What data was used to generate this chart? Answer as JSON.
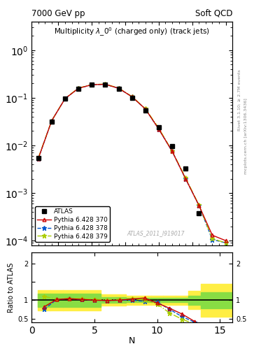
{
  "title_top_left": "7000 GeV pp",
  "title_top_right": "Soft QCD",
  "title_main": "Multiplicity $\\lambda\\_0^0$ (charged only) (track jets)",
  "right_label_top": "Rivet 3.1.10; ≥ 2.7M events",
  "right_label_bottom": "mcplots.cern.ch [arXiv:1306.3436]",
  "watermark": "ATLAS_2011_I919017",
  "atlas_x": [
    1,
    2,
    3,
    4,
    5,
    6,
    7,
    8,
    9,
    10,
    11,
    12,
    13
  ],
  "atlas_y": [
    0.0055,
    0.032,
    0.095,
    0.155,
    0.19,
    0.19,
    0.155,
    0.1,
    0.055,
    0.024,
    0.0095,
    0.0033,
    0.00038
  ],
  "py370_x": [
    1,
    2,
    3,
    4,
    5,
    6,
    7,
    8,
    9,
    10,
    11,
    12,
    13,
    14,
    15
  ],
  "py370_y": [
    0.0053,
    0.033,
    0.096,
    0.158,
    0.188,
    0.192,
    0.158,
    0.105,
    0.058,
    0.022,
    0.0075,
    0.002,
    0.00055,
    0.00013,
    0.0001
  ],
  "py378_x": [
    1,
    2,
    3,
    4,
    5,
    6,
    7,
    8,
    9,
    10,
    11,
    12,
    13,
    14,
    15
  ],
  "py378_y": [
    0.0053,
    0.033,
    0.096,
    0.158,
    0.188,
    0.192,
    0.158,
    0.105,
    0.058,
    0.022,
    0.0075,
    0.002,
    0.00055,
    0.000105,
    9e-05
  ],
  "py379_x": [
    1,
    2,
    3,
    4,
    5,
    6,
    7,
    8,
    9,
    10,
    11,
    12,
    13,
    14,
    15
  ],
  "py379_y": [
    0.0055,
    0.033,
    0.097,
    0.16,
    0.19,
    0.194,
    0.16,
    0.106,
    0.059,
    0.023,
    0.0076,
    0.0021,
    0.00056,
    0.00011,
    9e-05
  ],
  "ratio370_x": [
    1,
    2,
    3,
    4,
    5,
    6,
    7,
    8,
    9,
    10,
    11,
    12,
    13
  ],
  "ratio370_y": [
    0.82,
    1.02,
    1.04,
    1.02,
    1.0,
    0.99,
    1.0,
    1.03,
    1.06,
    0.92,
    0.78,
    0.62,
    0.42
  ],
  "ratio378_x": [
    1,
    2,
    3,
    4,
    5,
    6,
    7,
    8,
    9,
    10,
    11,
    12,
    13,
    14,
    15
  ],
  "ratio378_y": [
    0.75,
    1.02,
    1.04,
    1.02,
    1.0,
    0.99,
    1.0,
    1.0,
    0.97,
    0.95,
    0.75,
    0.55,
    0.4,
    0.29,
    0.22
  ],
  "ratio379_x": [
    1,
    2,
    3,
    4,
    5,
    6,
    7,
    8,
    9,
    10,
    11,
    12,
    13,
    14,
    15
  ],
  "ratio379_y": [
    1.1,
    1.03,
    1.05,
    1.04,
    1.02,
    1.01,
    1.02,
    1.04,
    1.0,
    0.9,
    0.65,
    0.48,
    0.35,
    0.27,
    0.2
  ],
  "band_yellow_x": [
    0.5,
    1.5,
    2.5,
    5.5,
    7.5,
    9.5,
    10.5,
    11.5,
    12.5,
    13.5,
    16.5
  ],
  "band_yellow_lo": [
    0.72,
    0.72,
    0.72,
    0.85,
    0.88,
    0.88,
    0.88,
    0.88,
    0.75,
    0.55,
    0.55
  ],
  "band_yellow_hi": [
    1.28,
    1.28,
    1.28,
    1.15,
    1.12,
    1.12,
    1.12,
    1.12,
    1.25,
    1.45,
    1.45
  ],
  "band_green_x": [
    0.5,
    1.5,
    2.5,
    5.5,
    7.5,
    9.5,
    10.5,
    11.5,
    12.5,
    13.5,
    16.5
  ],
  "band_green_lo": [
    0.82,
    0.82,
    0.82,
    0.92,
    0.94,
    0.94,
    0.94,
    0.94,
    0.88,
    0.78,
    0.78
  ],
  "band_green_hi": [
    1.18,
    1.18,
    1.18,
    1.08,
    1.06,
    1.06,
    1.06,
    1.06,
    1.12,
    1.22,
    1.22
  ],
  "color_370": "#cc0000",
  "color_378": "#0055cc",
  "color_379": "#aacc00",
  "ylim_main": [
    8e-05,
    4
  ],
  "ylim_ratio": [
    0.4,
    2.3
  ],
  "xlim_main": [
    0.5,
    15.5
  ],
  "xlim_ratio": [
    0,
    16
  ]
}
